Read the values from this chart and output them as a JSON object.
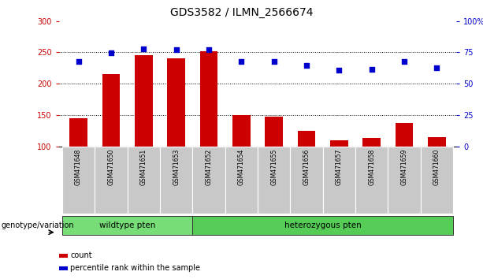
{
  "title": "GDS3582 / ILMN_2566674",
  "categories": [
    "GSM471648",
    "GSM471650",
    "GSM471651",
    "GSM471653",
    "GSM471652",
    "GSM471654",
    "GSM471655",
    "GSM471656",
    "GSM471657",
    "GSM471658",
    "GSM471659",
    "GSM471660"
  ],
  "bar_values": [
    145,
    215,
    245,
    240,
    252,
    150,
    148,
    125,
    110,
    114,
    137,
    115
  ],
  "scatter_values": [
    235,
    249,
    255,
    254,
    254,
    235,
    235,
    229,
    222,
    223,
    235,
    225
  ],
  "ylim_left": [
    100,
    300
  ],
  "ylim_right": [
    0,
    100
  ],
  "yticks_left": [
    100,
    150,
    200,
    250,
    300
  ],
  "yticks_right": [
    0,
    25,
    50,
    75,
    100
  ],
  "ytick_labels_right": [
    "0",
    "25",
    "50",
    "75",
    "100%"
  ],
  "bar_color": "#CC0000",
  "scatter_color": "#0000CC",
  "n_wildtype": 4,
  "n_heterozygous": 8,
  "wildtype_label": "wildtype pten",
  "heterozygous_label": "heterozygous pten",
  "wildtype_color": "#77DD77",
  "heterozygous_color": "#55CC55",
  "group_label": "genotype/variation",
  "legend_count": "count",
  "legend_percentile": "percentile rank within the sample",
  "xtick_bg_color": "#C8C8C8",
  "title_fontsize": 10,
  "tick_fontsize": 7,
  "xtick_fontsize": 5.5,
  "legend_fontsize": 7,
  "group_fontsize": 7.5,
  "group_label_fontsize": 7
}
